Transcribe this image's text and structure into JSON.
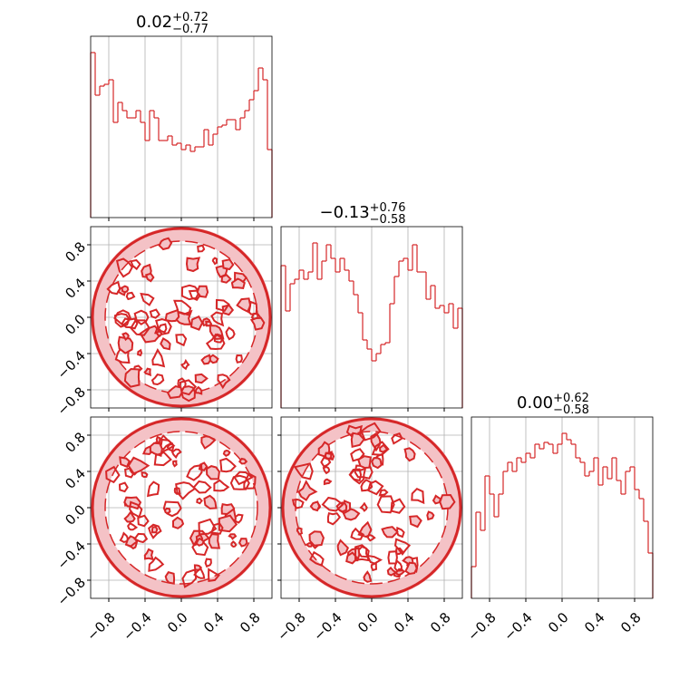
{
  "chart_data": [
    {
      "type": "histogram",
      "title": "0.02",
      "title_upper": "+0.72",
      "title_lower": "−0.77",
      "color": "#d62728",
      "bins": [
        -1,
        -0.95,
        -0.9,
        -0.85,
        -0.8,
        -0.75,
        -0.7,
        -0.65,
        -0.6,
        -0.55,
        -0.5,
        -0.45,
        -0.4,
        -0.35,
        -0.3,
        -0.25,
        -0.2,
        -0.15,
        -0.1,
        -0.05,
        0,
        0.05,
        0.1,
        0.15,
        0.2,
        0.25,
        0.3,
        0.35,
        0.4,
        0.45,
        0.5,
        0.55,
        0.6,
        0.65,
        0.7,
        0.75,
        0.8,
        0.85,
        0.9,
        0.95,
        1
      ],
      "counts": [
        182,
        135,
        145,
        147,
        152,
        105,
        127,
        118,
        110,
        110,
        118,
        105,
        85,
        118,
        110,
        85,
        85,
        90,
        80,
        82,
        75,
        80,
        73,
        78,
        78,
        97,
        80,
        92,
        100,
        102,
        108,
        108,
        97,
        110,
        118,
        130,
        140,
        165,
        152,
        75
      ],
      "ylim": [
        0,
        200
      ]
    },
    {
      "type": "contour",
      "color": "#d62728"
    },
    {
      "type": "histogram",
      "title": "−0.13",
      "title_upper": "+0.76",
      "title_lower": "−0.58",
      "color": "#d62728",
      "bins": [
        -1,
        -0.95,
        -0.9,
        -0.85,
        -0.8,
        -0.75,
        -0.7,
        -0.65,
        -0.6,
        -0.55,
        -0.5,
        -0.45,
        -0.4,
        -0.35,
        -0.3,
        -0.25,
        -0.2,
        -0.15,
        -0.1,
        -0.05,
        0,
        0.05,
        0.1,
        0.15,
        0.2,
        0.25,
        0.3,
        0.35,
        0.4,
        0.45,
        0.5,
        0.55,
        0.6,
        0.65,
        0.7,
        0.75,
        0.8,
        0.85,
        0.9,
        0.95,
        1
      ],
      "counts": [
        157,
        107,
        137,
        142,
        152,
        142,
        150,
        182,
        142,
        162,
        180,
        165,
        150,
        165,
        152,
        140,
        125,
        105,
        75,
        65,
        52,
        60,
        70,
        72,
        115,
        145,
        162,
        165,
        152,
        180,
        150,
        150,
        120,
        135,
        110,
        113,
        105,
        115,
        88,
        110
      ],
      "ylim": [
        0,
        200
      ]
    },
    {
      "type": "contour",
      "color": "#d62728"
    },
    {
      "type": "contour",
      "color": "#d62728"
    },
    {
      "type": "histogram",
      "title": "0.00",
      "title_upper": "+0.62",
      "title_lower": "−0.58",
      "color": "#d62728",
      "bins": [
        -1,
        -0.95,
        -0.9,
        -0.85,
        -0.8,
        -0.75,
        -0.7,
        -0.65,
        -0.6,
        -0.55,
        -0.5,
        -0.45,
        -0.4,
        -0.35,
        -0.3,
        -0.25,
        -0.2,
        -0.15,
        -0.1,
        -0.05,
        0,
        0.05,
        0.1,
        0.15,
        0.2,
        0.25,
        0.3,
        0.35,
        0.4,
        0.45,
        0.5,
        0.55,
        0.6,
        0.65,
        0.7,
        0.75,
        0.8,
        0.85,
        0.9,
        0.95,
        1
      ],
      "counts": [
        35,
        95,
        75,
        135,
        115,
        90,
        115,
        140,
        150,
        140,
        155,
        150,
        160,
        155,
        170,
        165,
        172,
        170,
        160,
        170,
        182,
        175,
        170,
        155,
        150,
        135,
        140,
        155,
        125,
        145,
        132,
        155,
        130,
        115,
        140,
        145,
        120,
        110,
        85,
        50
      ],
      "ylim": [
        0,
        200
      ]
    }
  ],
  "axis": {
    "lim": [
      -1,
      1
    ],
    "ticks": [
      {
        "value": -0.8,
        "label": "−0.8"
      },
      {
        "value": -0.4,
        "label": "−0.4"
      },
      {
        "value": 0,
        "label": "0.0"
      },
      {
        "value": 0.4,
        "label": "0.4"
      },
      {
        "value": 0.8,
        "label": "0.8"
      }
    ]
  }
}
